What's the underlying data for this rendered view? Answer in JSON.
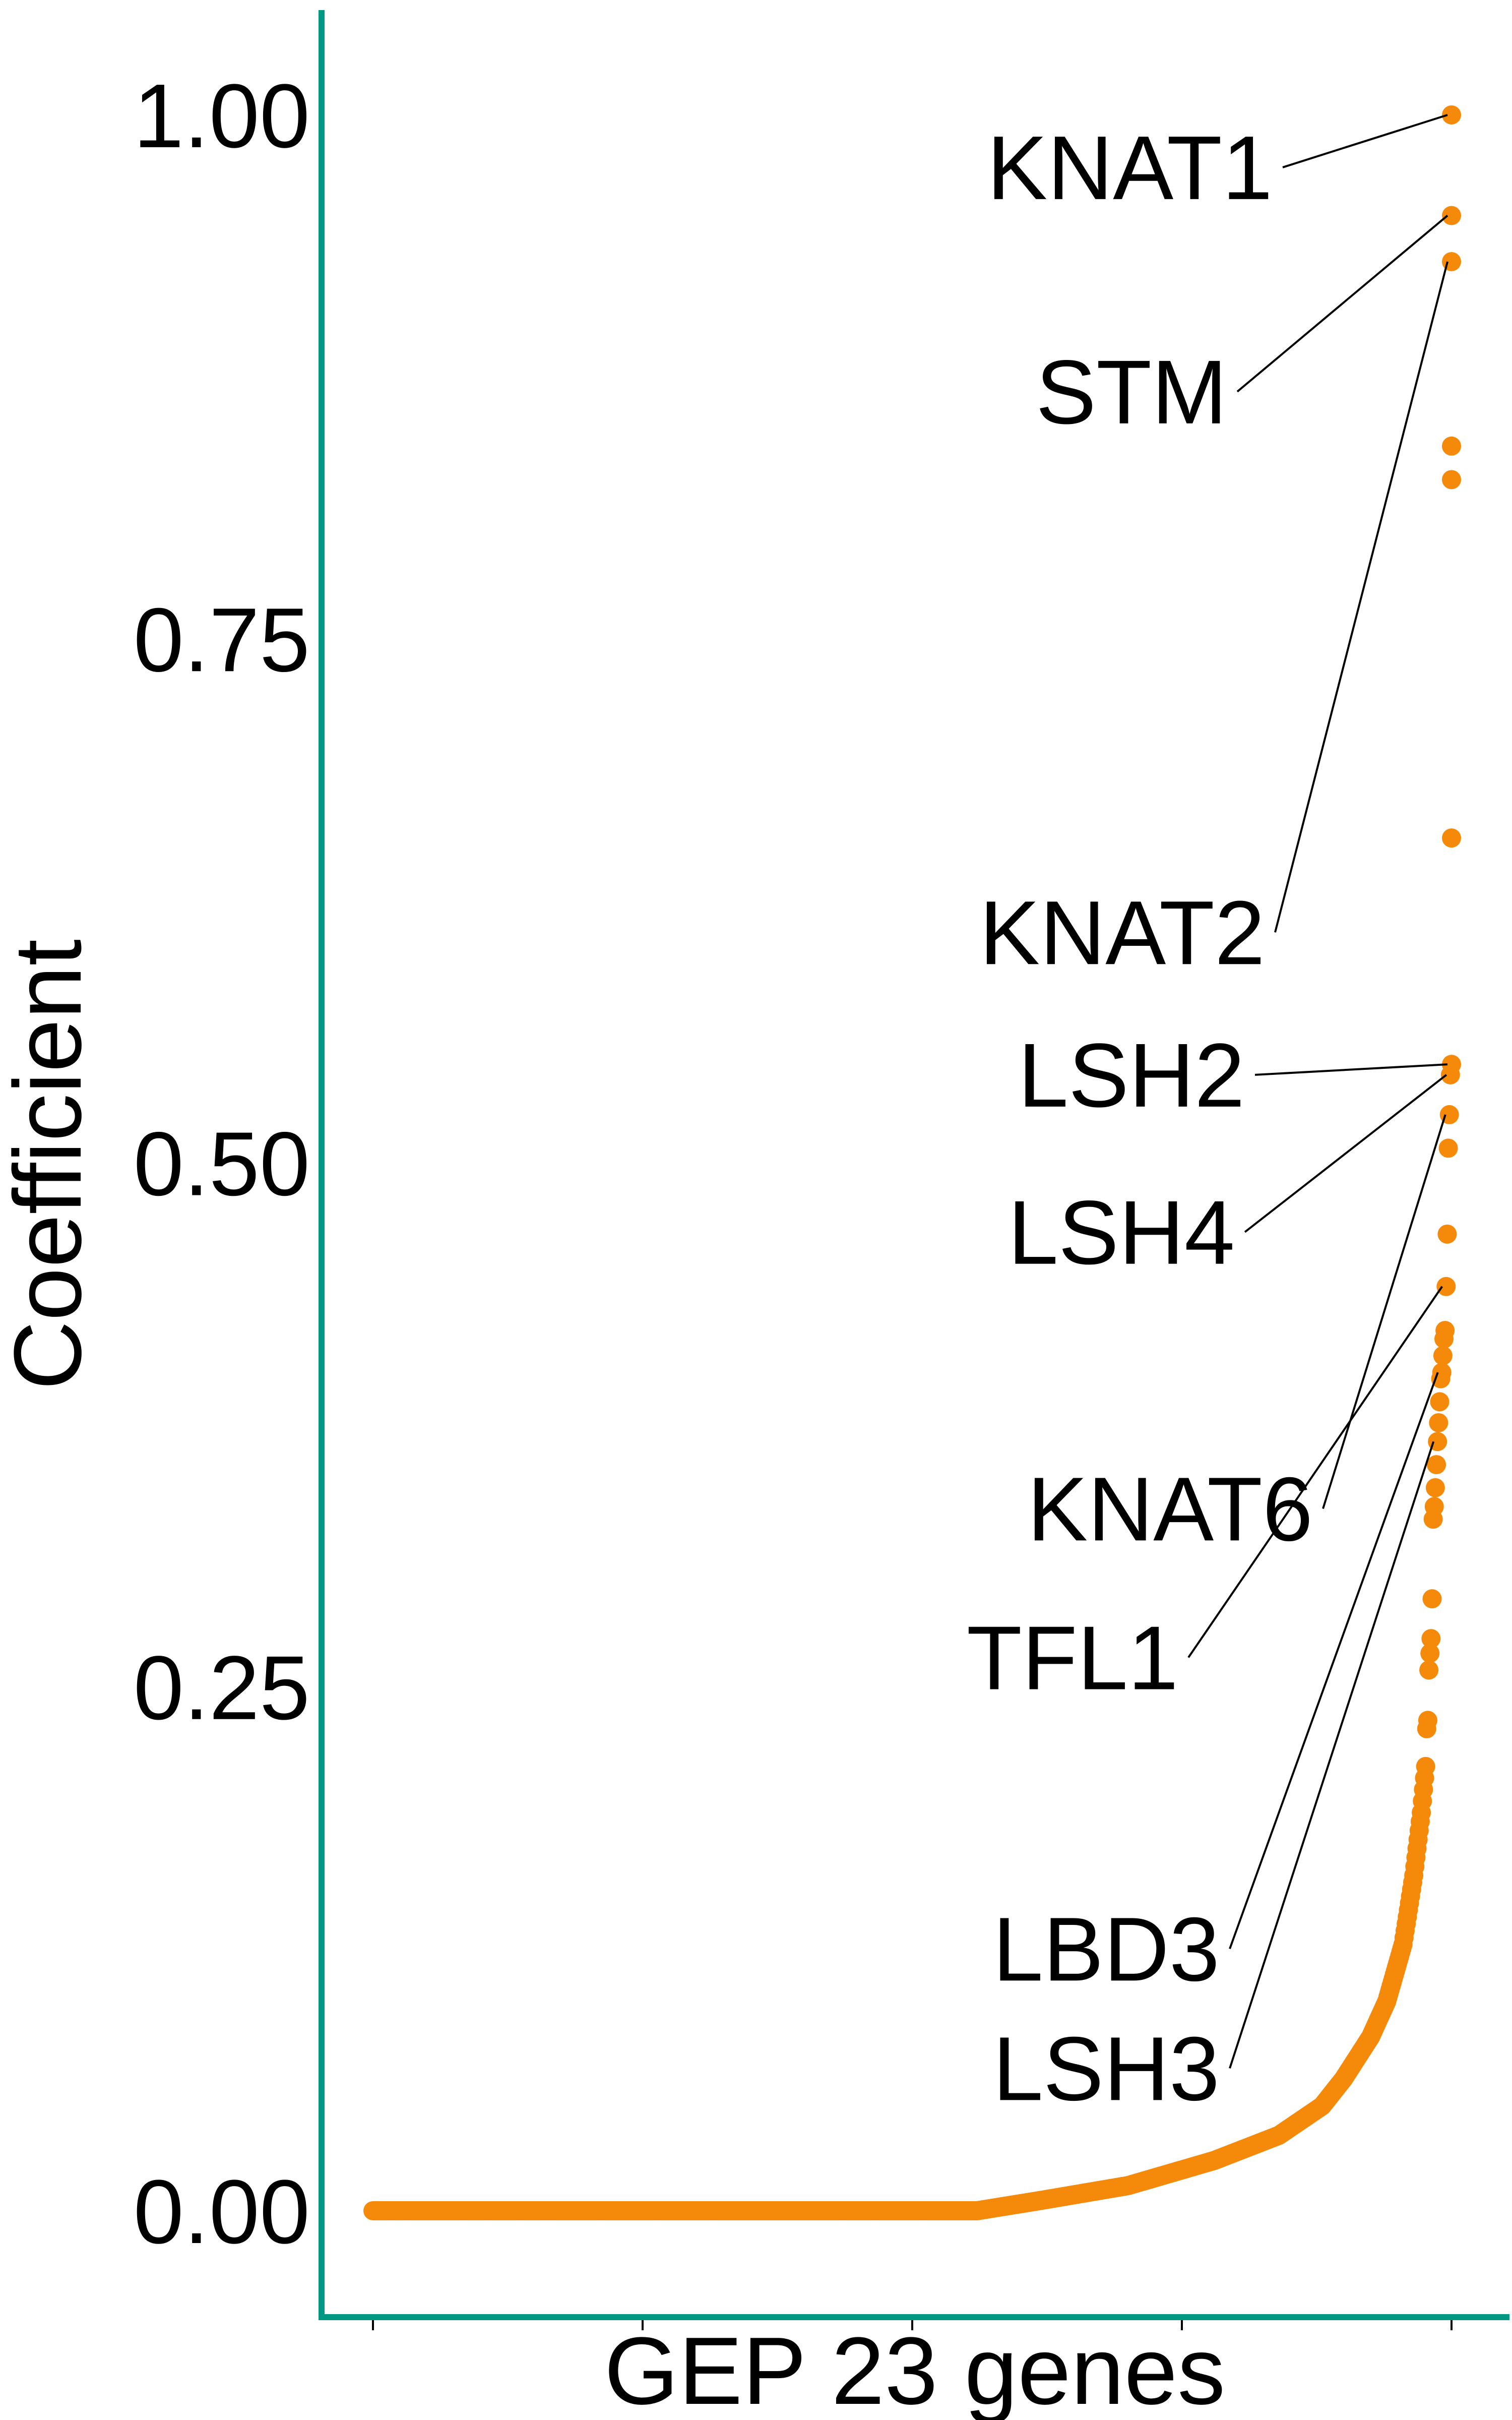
{
  "chart_data": {
    "type": "scatter",
    "title": "",
    "xlabel": "GEP 23 genes",
    "ylabel": "Coefficient",
    "ylim": [
      -0.05,
      1.05
    ],
    "yticks": [
      {
        "value": 0.0,
        "label": "0.00"
      },
      {
        "value": 0.25,
        "label": "0.25"
      },
      {
        "value": 0.5,
        "label": "0.50"
      },
      {
        "value": 0.75,
        "label": "0.75"
      },
      {
        "value": 1.0,
        "label": "1.00"
      }
    ],
    "x_rank_range": [
      0,
      1000
    ],
    "xticks_rank": [
      0,
      250,
      500,
      750,
      1000
    ],
    "grid": false,
    "colors": {
      "points": "#F58A0A",
      "axis": "#009882",
      "text": "#000000",
      "leader": "#000000"
    },
    "curve": {
      "n_points": 1000,
      "description_points": [
        [
          0,
          0.0
        ],
        [
          560,
          0.0
        ],
        [
          620,
          0.005
        ],
        [
          700,
          0.012
        ],
        [
          780,
          0.024
        ],
        [
          840,
          0.036
        ],
        [
          880,
          0.05
        ],
        [
          900,
          0.063
        ],
        [
          925,
          0.083
        ],
        [
          940,
          0.1
        ],
        [
          955,
          0.127
        ],
        [
          965,
          0.16
        ],
        [
          972,
          0.19
        ],
        [
          976,
          0.212
        ]
      ]
    },
    "top_points": [
      {
        "rank": 977,
        "value": 0.23
      },
      {
        "rank": 978,
        "value": 0.234
      },
      {
        "rank": 979,
        "value": 0.258
      },
      {
        "rank": 980,
        "value": 0.266
      },
      {
        "rank": 981,
        "value": 0.273
      },
      {
        "rank": 982,
        "value": 0.292
      },
      {
        "rank": 983,
        "value": 0.33
      },
      {
        "rank": 984,
        "value": 0.336
      },
      {
        "rank": 985,
        "value": 0.345
      },
      {
        "rank": 986,
        "value": 0.356
      },
      {
        "rank": 987,
        "value": 0.367,
        "label": "LSH3"
      },
      {
        "rank": 988,
        "value": 0.376
      },
      {
        "rank": 989,
        "value": 0.386
      },
      {
        "rank": 990,
        "value": 0.397
      },
      {
        "rank": 991,
        "value": 0.4,
        "label": "LBD3"
      },
      {
        "rank": 992,
        "value": 0.408
      },
      {
        "rank": 993,
        "value": 0.416
      },
      {
        "rank": 994,
        "value": 0.42
      },
      {
        "rank": 995,
        "value": 0.441,
        "label": "TFL1"
      },
      {
        "rank": 996,
        "value": 0.466
      },
      {
        "rank": 997,
        "value": 0.507
      },
      {
        "rank": 998,
        "value": 0.523,
        "label": "KNAT6"
      },
      {
        "rank": 999,
        "value": 0.542,
        "label": "LSH4"
      },
      {
        "rank": 1000,
        "value": 0.547,
        "label": "LSH2"
      },
      {
        "rank": 1000,
        "value": 0.655
      },
      {
        "rank": 1000,
        "value": 0.826
      },
      {
        "rank": 1000,
        "value": 0.842
      },
      {
        "rank": 1000,
        "value": 0.93,
        "label": "KNAT2"
      },
      {
        "rank": 1000,
        "value": 0.952,
        "label": "STM"
      },
      {
        "rank": 1000,
        "value": 1.0,
        "label": "KNAT1"
      }
    ],
    "labels": [
      {
        "text": "KNAT1",
        "label_y": 0.975
      },
      {
        "text": "STM",
        "label_y": 0.868
      },
      {
        "text": "KNAT2",
        "label_y": 0.61
      },
      {
        "text": "LSH2",
        "label_y": 0.542
      },
      {
        "text": "LSH4",
        "label_y": 0.467
      },
      {
        "text": "KNAT6",
        "label_y": 0.335
      },
      {
        "text": "TFL1",
        "label_y": 0.264
      },
      {
        "text": "LBD3",
        "label_y": 0.125
      },
      {
        "text": "LSH3",
        "label_y": 0.068
      }
    ]
  }
}
